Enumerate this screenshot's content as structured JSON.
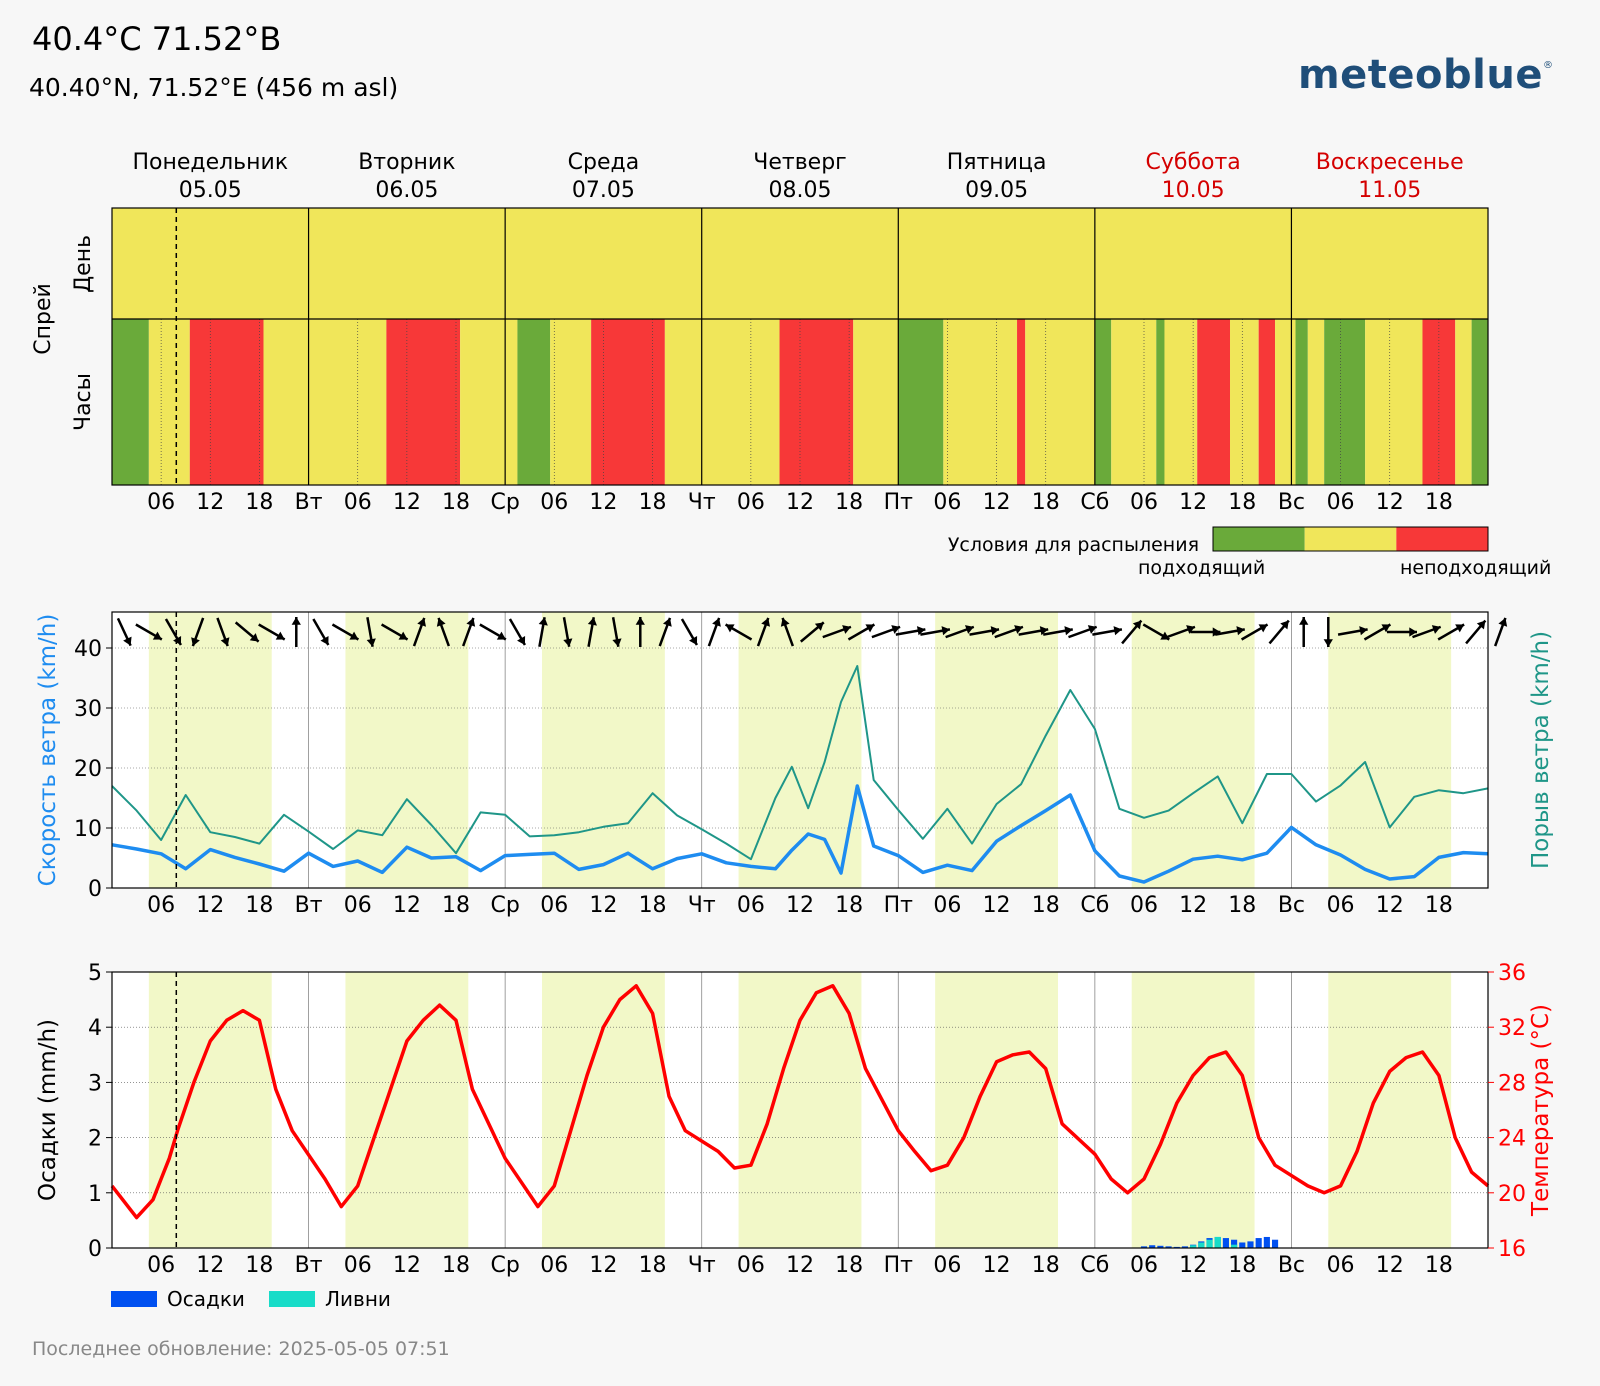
{
  "header": {
    "title": "40.4°C 71.52°B",
    "subtitle": "40.40°N, 71.52°E (456 m asl)",
    "logo_text": "meteoblue",
    "logo_mark": "®"
  },
  "days": [
    {
      "name": "Понедельник",
      "date": "05.05",
      "weekend": false
    },
    {
      "name": "Вторник",
      "date": "06.05",
      "weekend": false
    },
    {
      "name": "Среда",
      "date": "07.05",
      "weekend": false
    },
    {
      "name": "Четверг",
      "date": "08.05",
      "weekend": false
    },
    {
      "name": "Пятница",
      "date": "09.05",
      "weekend": false
    },
    {
      "name": "Суббота",
      "date": "10.05",
      "weekend": true
    },
    {
      "name": "Воскресенье",
      "date": "11.05",
      "weekend": true
    }
  ],
  "x_ticks": [
    "",
    "06",
    "12",
    "18",
    "Вт",
    "06",
    "12",
    "18",
    "Ср",
    "06",
    "12",
    "18",
    "Чт",
    "06",
    "12",
    "18",
    "Пт",
    "06",
    "12",
    "18",
    "Сб",
    "06",
    "12",
    "18",
    "Вс",
    "06",
    "12",
    "18"
  ],
  "now_hour": 7.85,
  "colors": {
    "suitable": "#6aaa3a",
    "neutral": "#f0e65a",
    "unsuitable": "#f73838",
    "daylight": "#f2f8c8",
    "wind_speed": "#1e8cf0",
    "gust": "#1f9688",
    "temperature": "#ff0000",
    "precip": "#0050f0",
    "showers": "#18dcc8",
    "weekend_text": "#d40000",
    "logo": "#1f4e79"
  },
  "daylight_hours": [
    [
      4.5,
      19.5
    ],
    [
      28.5,
      43.5
    ],
    [
      52.5,
      67.5
    ],
    [
      76.5,
      91.5
    ],
    [
      100.5,
      115.5
    ],
    [
      124.5,
      139.5
    ],
    [
      148.5,
      163.5
    ]
  ],
  "panel1": {
    "group_label": "Спрей",
    "row_day_label": "День",
    "row_hours_label": "Часы",
    "legend_title": "Условия для распыления",
    "legend_left": "подходящий",
    "legend_right": "неподходящий",
    "day_row": [
      "neutral",
      "neutral",
      "neutral",
      "neutral",
      "neutral",
      "neutral",
      "neutral"
    ],
    "hour_row": [
      [
        0,
        4.5,
        "suitable"
      ],
      [
        4.5,
        9.5,
        "neutral"
      ],
      [
        9.5,
        18.5,
        "unsuitable"
      ],
      [
        18.5,
        33.5,
        "neutral"
      ],
      [
        33.5,
        42.5,
        "unsuitable"
      ],
      [
        42.5,
        49.5,
        "neutral"
      ],
      [
        49.5,
        53.5,
        "suitable"
      ],
      [
        53.5,
        58.5,
        "neutral"
      ],
      [
        58.5,
        67.5,
        "unsuitable"
      ],
      [
        67.5,
        81.5,
        "neutral"
      ],
      [
        81.5,
        90.5,
        "unsuitable"
      ],
      [
        90.5,
        96,
        "neutral"
      ],
      [
        96,
        101.5,
        "suitable"
      ],
      [
        101.5,
        110.5,
        "neutral"
      ],
      [
        110.5,
        111.5,
        "unsuitable"
      ],
      [
        111.5,
        120,
        "neutral"
      ],
      [
        120,
        122,
        "suitable"
      ],
      [
        122,
        127.5,
        "neutral"
      ],
      [
        127.5,
        128.5,
        "suitable"
      ],
      [
        128.5,
        132.5,
        "neutral"
      ],
      [
        132.5,
        136.5,
        "unsuitable"
      ],
      [
        136.5,
        140,
        "neutral"
      ],
      [
        140,
        142,
        "unsuitable"
      ],
      [
        142,
        144.5,
        "neutral"
      ],
      [
        144.5,
        146,
        "suitable"
      ],
      [
        146,
        148,
        "neutral"
      ],
      [
        148,
        153,
        "suitable"
      ],
      [
        153,
        160,
        "neutral"
      ],
      [
        160,
        164,
        "unsuitable"
      ],
      [
        164,
        166,
        "neutral"
      ],
      [
        166,
        168,
        "suitable"
      ]
    ]
  },
  "chart_data": [
    {
      "type": "line",
      "title": "",
      "ylabel": "Скорость ветра (km/h)",
      "ylabel_right": "Порыв ветра (km/h)",
      "ylim": [
        0,
        46
      ],
      "yticks": [
        0,
        10,
        20,
        30,
        40
      ],
      "x_unit": "hours since 05.05 00:00",
      "grid": true,
      "series": [
        {
          "name": "Скорость ветра (km/h)",
          "x": [
            0,
            3,
            6,
            9,
            12,
            15,
            18,
            21,
            24,
            27,
            30,
            33,
            36,
            39,
            42,
            45,
            48,
            51,
            54,
            57,
            60,
            63,
            66,
            69,
            72,
            75,
            78,
            81,
            83,
            85,
            87,
            89,
            91,
            93,
            96,
            99,
            102,
            105,
            108,
            111,
            114,
            117,
            120,
            123,
            126,
            129,
            132,
            135,
            138,
            141,
            144,
            147,
            150,
            153,
            156,
            159,
            162,
            165,
            168
          ],
          "y": [
            7.2,
            6.5,
            5.7,
            3.2,
            6.4,
            5.1,
            4.0,
            2.8,
            5.8,
            3.6,
            4.5,
            2.6,
            6.8,
            5.0,
            5.2,
            2.9,
            5.4,
            5.6,
            5.8,
            3.1,
            3.9,
            5.8,
            3.2,
            4.9,
            5.7,
            4.2,
            3.6,
            3.2,
            6.3,
            9.0,
            8.1,
            2.5,
            17.0,
            7.0,
            5.4,
            2.6,
            3.8,
            2.9,
            7.8,
            10.4,
            12.9,
            15.5,
            6.2,
            2.0,
            1.0,
            2.8,
            4.8,
            5.3,
            4.7,
            5.8,
            10.1,
            7.2,
            5.5,
            3.1,
            1.5,
            1.9,
            5.1,
            5.9,
            5.7
          ]
        },
        {
          "name": "Порыв ветра (km/h)",
          "x": [
            0,
            3,
            6,
            9,
            12,
            15,
            18,
            21,
            24,
            27,
            30,
            33,
            36,
            39,
            42,
            45,
            48,
            51,
            54,
            57,
            60,
            63,
            66,
            69,
            72,
            75,
            78,
            81,
            83,
            85,
            87,
            89,
            91,
            93,
            96,
            99,
            102,
            105,
            108,
            111,
            114,
            117,
            120,
            123,
            126,
            129,
            132,
            135,
            138,
            141,
            144,
            147,
            150,
            153,
            156,
            159,
            162,
            165,
            168
          ],
          "y": [
            17.0,
            12.9,
            8.0,
            15.5,
            9.3,
            8.5,
            7.4,
            12.2,
            9.4,
            6.5,
            9.6,
            8.8,
            14.8,
            10.5,
            5.8,
            12.6,
            12.2,
            8.6,
            8.8,
            9.3,
            10.2,
            10.8,
            15.8,
            12.1,
            9.8,
            7.4,
            4.8,
            15.0,
            20.2,
            13.3,
            21.0,
            31.0,
            37.0,
            18.0,
            13.0,
            8.2,
            13.2,
            7.4,
            14.0,
            17.3,
            25.4,
            33.0,
            26.5,
            13.2,
            11.7,
            12.9,
            15.8,
            18.6,
            10.8,
            19.0,
            19.0,
            14.4,
            17.1,
            21.0,
            10.1,
            15.2,
            16.3,
            15.8,
            16.6
          ]
        }
      ],
      "wind_directions_deg": [
        335,
        300,
        330,
        20,
        340,
        310,
        300,
        180,
        330,
        300,
        350,
        300,
        200,
        160,
        200,
        300,
        330,
        190,
        350,
        190,
        350,
        180,
        200,
        330,
        200,
        120,
        200,
        160,
        230,
        250,
        240,
        250,
        260,
        260,
        250,
        260,
        250,
        260,
        260,
        250,
        260,
        220,
        300,
        250,
        270,
        260,
        240,
        220,
        180,
        0,
        260,
        240,
        270,
        250,
        240,
        220,
        200
      ]
    },
    {
      "type": "line",
      "title": "",
      "ylabel": "Осадки (mm/h)",
      "ylabel_right": "Температура (°C)",
      "ylim": [
        0,
        5
      ],
      "ylim_right": [
        16,
        36
      ],
      "yticks": [
        0,
        1,
        2,
        3,
        4,
        5
      ],
      "yticks_right": [
        16,
        20,
        24,
        28,
        32,
        36
      ],
      "x_unit": "hours since 05.05 00:00",
      "grid": true,
      "series": [
        {
          "name": "Температура (°C)",
          "x": [
            0,
            3,
            5,
            6,
            7,
            8,
            10,
            12,
            14,
            16,
            18,
            20,
            22,
            26,
            28,
            30,
            32,
            34,
            36,
            38,
            40,
            42,
            44,
            48,
            52,
            54,
            56,
            58,
            60,
            62,
            64,
            66,
            68,
            70,
            74,
            76,
            78,
            80,
            82,
            84,
            86,
            88,
            90,
            92,
            96,
            98,
            100,
            102,
            104,
            106,
            108,
            110,
            112,
            114,
            116,
            120,
            122,
            124,
            126,
            128,
            130,
            132,
            134,
            136,
            138,
            140,
            142,
            146,
            148,
            150,
            152,
            154,
            156,
            158,
            160,
            162,
            164,
            166,
            168
          ],
          "y": [
            20.5,
            18.2,
            19.5,
            21.0,
            22.5,
            24.5,
            28.0,
            31.0,
            32.5,
            33.2,
            32.5,
            27.5,
            24.5,
            21.0,
            19.0,
            20.5,
            24.0,
            27.5,
            31.0,
            32.5,
            33.6,
            32.5,
            27.5,
            22.5,
            19.0,
            20.5,
            24.5,
            28.5,
            32.0,
            34.0,
            35.0,
            33.0,
            27.0,
            24.5,
            23.0,
            21.8,
            22.0,
            25.0,
            29.0,
            32.5,
            34.5,
            35.0,
            33.0,
            29.0,
            24.5,
            23.0,
            21.6,
            22.0,
            24.0,
            27.0,
            29.5,
            30.0,
            30.2,
            29.0,
            25.0,
            22.8,
            21.0,
            20.0,
            21.0,
            23.5,
            26.5,
            28.5,
            29.8,
            30.2,
            28.5,
            24.0,
            22.0,
            20.5,
            20.0,
            20.5,
            23.0,
            26.5,
            28.8,
            29.8,
            30.2,
            28.5,
            24.0,
            21.5,
            20.5
          ]
        }
      ],
      "precip_bars": {
        "name": "Осадки",
        "x": [
          126,
          127,
          128,
          129,
          130,
          131,
          132,
          133,
          134,
          135,
          136,
          137,
          138,
          139,
          140,
          141,
          142
        ],
        "y": [
          0.03,
          0.05,
          0.04,
          0.03,
          0.02,
          0.03,
          0.06,
          0.12,
          0.18,
          0.2,
          0.18,
          0.15,
          0.1,
          0.12,
          0.18,
          0.2,
          0.15
        ]
      },
      "shower_bars": {
        "name": "Ливни",
        "x": [
          132,
          133,
          134,
          135,
          137
        ],
        "y": [
          0.05,
          0.1,
          0.15,
          0.2,
          0.06
        ]
      },
      "legend": [
        "Осадки",
        "Ливни"
      ]
    }
  ],
  "footer": "Последнее обновление: 2025-05-05 07:51"
}
